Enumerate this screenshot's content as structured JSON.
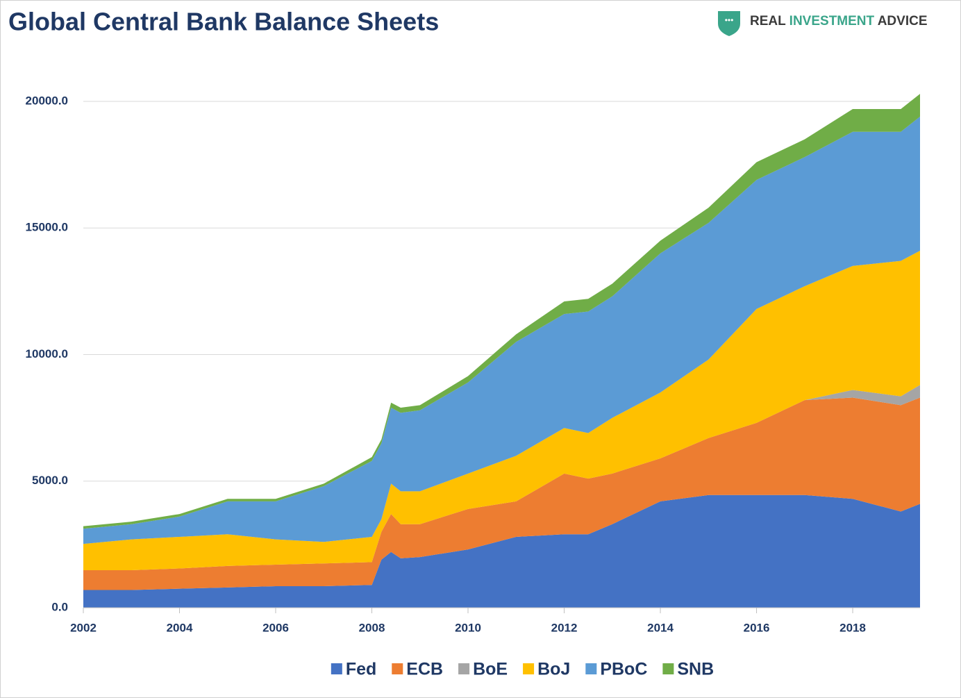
{
  "chart_data": {
    "type": "stacked_area",
    "title": "Global Central Bank Balance Sheets",
    "logo": [
      "REAL",
      "INVESTMENT",
      "ADVICE"
    ],
    "x": [
      2002,
      2003,
      2004,
      2005,
      2006,
      2007,
      2008,
      2008.2,
      2008.4,
      2008.6,
      2009,
      2010,
      2011,
      2012,
      2012.5,
      2013,
      2014,
      2015,
      2016,
      2017,
      2018,
      2019,
      2019.4
    ],
    "series": [
      {
        "name": "Fed",
        "color": "#4472c4",
        "values": [
          700,
          700,
          750,
          800,
          850,
          850,
          900,
          1900,
          2200,
          1950,
          2000,
          2300,
          2800,
          2900,
          2900,
          3300,
          4200,
          4450,
          4450,
          4450,
          4300,
          3800,
          4100
        ]
      },
      {
        "name": "ECB",
        "color": "#ed7d31",
        "values": [
          780,
          780,
          800,
          850,
          850,
          900,
          900,
          1100,
          1500,
          1350,
          1300,
          1600,
          1400,
          2400,
          2200,
          2000,
          1700,
          2250,
          2850,
          3750,
          4000,
          4200,
          4200
        ]
      },
      {
        "name": "BoE",
        "color": "#a5a5a5",
        "values": [
          0,
          0,
          0,
          0,
          0,
          0,
          0,
          0,
          0,
          0,
          0,
          0,
          0,
          0,
          0,
          0,
          0,
          0,
          0,
          0,
          300,
          350,
          500
        ]
      },
      {
        "name": "BoJ",
        "color": "#ffc000",
        "values": [
          1040,
          1220,
          1250,
          1250,
          1000,
          850,
          1000,
          500,
          1200,
          1300,
          1300,
          1400,
          1800,
          1800,
          1800,
          2200,
          2600,
          3100,
          4500,
          4500,
          4900,
          5350,
          5300
        ]
      },
      {
        "name": "PBoC",
        "color": "#5b9bd5",
        "values": [
          600,
          600,
          800,
          1300,
          1500,
          2200,
          3000,
          3000,
          3000,
          3100,
          3200,
          3600,
          4500,
          4500,
          4800,
          4800,
          5500,
          5400,
          5100,
          5100,
          5300,
          5100,
          5300
        ]
      },
      {
        "name": "SNB",
        "color": "#70ad47",
        "values": [
          100,
          100,
          100,
          100,
          100,
          100,
          150,
          150,
          200,
          200,
          200,
          250,
          300,
          500,
          500,
          500,
          500,
          600,
          700,
          700,
          900,
          900,
          900
        ]
      }
    ],
    "xlim": [
      2002,
      2019.4
    ],
    "xticks": [
      2002,
      2004,
      2006,
      2008,
      2010,
      2012,
      2014,
      2016,
      2018
    ],
    "ylim": [
      0,
      20000
    ],
    "yticks": [
      {
        "value": 0,
        "label": "0.0"
      },
      {
        "value": 5000,
        "label": "5000.0"
      },
      {
        "value": 10000,
        "label": "10000.0"
      },
      {
        "value": 15000,
        "label": "15000.0"
      },
      {
        "value": 20000,
        "label": "20000.0"
      }
    ],
    "grid": true,
    "legend": "bottom"
  }
}
